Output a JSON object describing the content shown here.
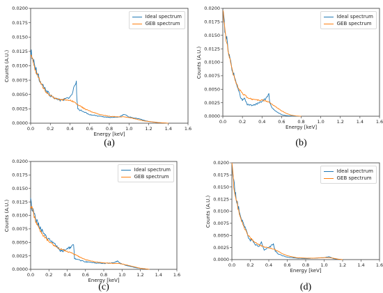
{
  "colors": {
    "ideal": "#1f77b4",
    "geb": "#ff7f0e"
  },
  "chart_data": [
    {
      "type": "line",
      "panel_label": "(a)",
      "xlabel": "Energy [keV]",
      "ylabel": "Counts (A.U.)",
      "xlim": [
        0,
        1.6
      ],
      "ylim": [
        0,
        0.02
      ],
      "xticks": [
        "0.0",
        "0.2",
        "0.4",
        "0.6",
        "0.8",
        "1.0",
        "1.2",
        "1.4",
        "1.6"
      ],
      "yticks": [
        "0.0000",
        "0.0025",
        "0.0050",
        "0.0075",
        "0.0100",
        "0.0125",
        "0.0150",
        "0.0175",
        "0.0200"
      ],
      "legend_position": "top-right",
      "series": [
        {
          "name": "Ideal spectrum",
          "x": [
            0,
            0.02,
            0.05,
            0.08,
            0.1,
            0.15,
            0.2,
            0.25,
            0.3,
            0.35,
            0.4,
            0.43,
            0.45,
            0.465,
            0.47,
            0.48,
            0.5,
            0.55,
            0.6,
            0.7,
            0.8,
            0.9,
            0.95,
            0.98,
            1.0,
            1.05,
            1.1,
            1.15,
            1.2,
            1.25,
            1.3,
            1.35,
            1.4
          ],
          "y": [
            0.0125,
            0.0115,
            0.0095,
            0.0082,
            0.0072,
            0.0058,
            0.0048,
            0.0043,
            0.004,
            0.0042,
            0.0045,
            0.0055,
            0.0065,
            0.0072,
            0.004,
            0.0025,
            0.0023,
            0.0019,
            0.0015,
            0.0012,
            0.001,
            0.0011,
            0.0015,
            0.0013,
            0.0011,
            0.0009,
            0.0008,
            0.0005,
            0.0003,
            0.0002,
            0.0001,
            5e-05,
            0.0
          ]
        },
        {
          "name": "GEB spectrum",
          "x": [
            0,
            0.02,
            0.05,
            0.08,
            0.1,
            0.15,
            0.2,
            0.25,
            0.3,
            0.35,
            0.4,
            0.45,
            0.5,
            0.55,
            0.6,
            0.7,
            0.8,
            0.9,
            0.95,
            1.0,
            1.05,
            1.1,
            1.15,
            1.2,
            1.25,
            1.3,
            1.35,
            1.4
          ],
          "y": [
            0.012,
            0.011,
            0.0092,
            0.008,
            0.007,
            0.0056,
            0.0048,
            0.0043,
            0.0041,
            0.0041,
            0.004,
            0.0036,
            0.003,
            0.0025,
            0.0021,
            0.0015,
            0.0012,
            0.0011,
            0.0011,
            0.001,
            0.0008,
            0.0006,
            0.0004,
            0.0003,
            0.0002,
            0.0001,
            5e-05,
            0.0
          ]
        }
      ]
    },
    {
      "type": "line",
      "panel_label": "(b)",
      "xlabel": "Energy [keV]",
      "ylabel": "Counts (A.U.)",
      "xlim": [
        0,
        1.6
      ],
      "ylim": [
        0,
        0.02
      ],
      "xticks": [
        "0.0",
        "0.2",
        "0.4",
        "0.6",
        "0.8",
        "1.0",
        "1.2",
        "1.4",
        "1.6"
      ],
      "yticks": [
        "0.0000",
        "0.0025",
        "0.0050",
        "0.0075",
        "0.0100",
        "0.0125",
        "0.0150",
        "0.0175",
        "0.0200"
      ],
      "legend_position": "top-right",
      "series": [
        {
          "name": "Ideal spectrum",
          "x": [
            0,
            0.01,
            0.02,
            0.04,
            0.06,
            0.08,
            0.1,
            0.13,
            0.16,
            0.18,
            0.2,
            0.22,
            0.25,
            0.3,
            0.35,
            0.4,
            0.45,
            0.47,
            0.48,
            0.5,
            0.55,
            0.6,
            0.65,
            0.7,
            0.75,
            0.8
          ],
          "y": [
            0.02,
            0.019,
            0.0165,
            0.014,
            0.012,
            0.01,
            0.0085,
            0.0065,
            0.005,
            0.0035,
            0.003,
            0.0033,
            0.0022,
            0.002,
            0.0023,
            0.0028,
            0.0035,
            0.0042,
            0.0025,
            0.0016,
            0.0008,
            0.0003,
            0.0001,
            5e-05,
            0.0,
            0.0
          ]
        },
        {
          "name": "GEB spectrum",
          "x": [
            0,
            0.01,
            0.02,
            0.04,
            0.06,
            0.08,
            0.1,
            0.13,
            0.16,
            0.2,
            0.25,
            0.3,
            0.35,
            0.4,
            0.45,
            0.5,
            0.55,
            0.6,
            0.65,
            0.7,
            0.75,
            0.8
          ],
          "y": [
            0.02,
            0.018,
            0.016,
            0.0135,
            0.0115,
            0.0098,
            0.0082,
            0.0065,
            0.0052,
            0.0042,
            0.0035,
            0.0031,
            0.003,
            0.003,
            0.0028,
            0.0023,
            0.0016,
            0.001,
            0.0005,
            0.0002,
            5e-05,
            0.0
          ]
        }
      ]
    },
    {
      "type": "line",
      "panel_label": "(c)",
      "xlabel": "Energy [keV]",
      "ylabel": "Counts (A.U.)",
      "xlim": [
        0,
        1.6
      ],
      "ylim": [
        0,
        0.02
      ],
      "xticks": [
        "0.0",
        "0.2",
        "0.4",
        "0.6",
        "0.8",
        "1.0",
        "1.2",
        "1.4",
        "1.6"
      ],
      "yticks": [
        "0.0000",
        "0.0025",
        "0.0050",
        "0.0075",
        "0.0100",
        "0.0125",
        "0.0150",
        "0.0175",
        "0.0200"
      ],
      "legend_position": "top-right",
      "series": [
        {
          "name": "Ideal spectrum",
          "x": [
            0,
            0.02,
            0.05,
            0.08,
            0.1,
            0.15,
            0.2,
            0.25,
            0.3,
            0.32,
            0.35,
            0.4,
            0.45,
            0.47,
            0.48,
            0.5,
            0.55,
            0.6,
            0.7,
            0.8,
            0.9,
            0.95,
            0.98,
            1.0,
            1.05,
            1.1,
            1.15,
            1.2,
            1.25,
            1.3
          ],
          "y": [
            0.0125,
            0.0112,
            0.0095,
            0.0085,
            0.0078,
            0.0065,
            0.0055,
            0.005,
            0.004,
            0.0035,
            0.0034,
            0.0038,
            0.0042,
            0.0048,
            0.002,
            0.0019,
            0.0016,
            0.0014,
            0.0012,
            0.0011,
            0.0012,
            0.0015,
            0.0012,
            0.001,
            0.0007,
            0.0005,
            0.0003,
            0.0002,
            0.0001,
            0.0
          ]
        },
        {
          "name": "GEB spectrum",
          "x": [
            0,
            0.02,
            0.05,
            0.08,
            0.1,
            0.15,
            0.2,
            0.25,
            0.3,
            0.35,
            0.4,
            0.45,
            0.5,
            0.55,
            0.6,
            0.7,
            0.8,
            0.9,
            0.95,
            1.0,
            1.05,
            1.1,
            1.15,
            1.2,
            1.25,
            1.3
          ],
          "y": [
            0.012,
            0.011,
            0.0092,
            0.008,
            0.0072,
            0.006,
            0.0052,
            0.0045,
            0.004,
            0.0036,
            0.0033,
            0.003,
            0.0026,
            0.0022,
            0.0018,
            0.0014,
            0.0012,
            0.0011,
            0.0011,
            0.001,
            0.0008,
            0.0006,
            0.0004,
            0.0002,
            0.0001,
            0.0
          ]
        }
      ]
    },
    {
      "type": "line",
      "panel_label": "(d)",
      "xlabel": "Energy [keV]",
      "ylabel": "Counts (A.U.)",
      "xlim": [
        0,
        1.6
      ],
      "ylim": [
        0,
        0.02
      ],
      "xticks": [
        "0.0",
        "0.2",
        "0.4",
        "0.6",
        "0.8",
        "1.0",
        "1.2",
        "1.4",
        "1.6"
      ],
      "yticks": [
        "0.0000",
        "0.0025",
        "0.0050",
        "0.0075",
        "0.0100",
        "0.0125",
        "0.0150",
        "0.0175",
        "0.0200"
      ],
      "legend_position": "top-right",
      "series": [
        {
          "name": "Ideal spectrum",
          "x": [
            0,
            0.01,
            0.02,
            0.04,
            0.06,
            0.08,
            0.1,
            0.13,
            0.16,
            0.18,
            0.2,
            0.22,
            0.25,
            0.3,
            0.32,
            0.33,
            0.35,
            0.4,
            0.45,
            0.47,
            0.5,
            0.55,
            0.6,
            0.7,
            0.8,
            0.9,
            1.0,
            1.05,
            1.08,
            1.1,
            1.15,
            1.2
          ],
          "y": [
            0.02,
            0.0185,
            0.016,
            0.0135,
            0.0115,
            0.01,
            0.0085,
            0.007,
            0.0058,
            0.0045,
            0.004,
            0.0042,
            0.003,
            0.0028,
            0.0038,
            0.003,
            0.002,
            0.0025,
            0.0032,
            0.0018,
            0.0012,
            0.0008,
            0.0005,
            0.0003,
            0.0002,
            0.0003,
            0.0004,
            0.0006,
            0.0004,
            0.0002,
            0.0001,
            0.0
          ]
        },
        {
          "name": "GEB spectrum",
          "x": [
            0,
            0.01,
            0.02,
            0.04,
            0.06,
            0.08,
            0.1,
            0.13,
            0.16,
            0.2,
            0.25,
            0.3,
            0.35,
            0.4,
            0.45,
            0.5,
            0.55,
            0.6,
            0.7,
            0.8,
            0.9,
            1.0,
            1.05,
            1.1,
            1.15,
            1.2
          ],
          "y": [
            0.02,
            0.0178,
            0.0155,
            0.013,
            0.0112,
            0.0096,
            0.0082,
            0.0068,
            0.0056,
            0.0045,
            0.0036,
            0.003,
            0.0026,
            0.0024,
            0.0022,
            0.0017,
            0.0012,
            0.0008,
            0.0004,
            0.0003,
            0.0003,
            0.0004,
            0.0004,
            0.0003,
            0.0001,
            0.0
          ]
        }
      ]
    }
  ]
}
